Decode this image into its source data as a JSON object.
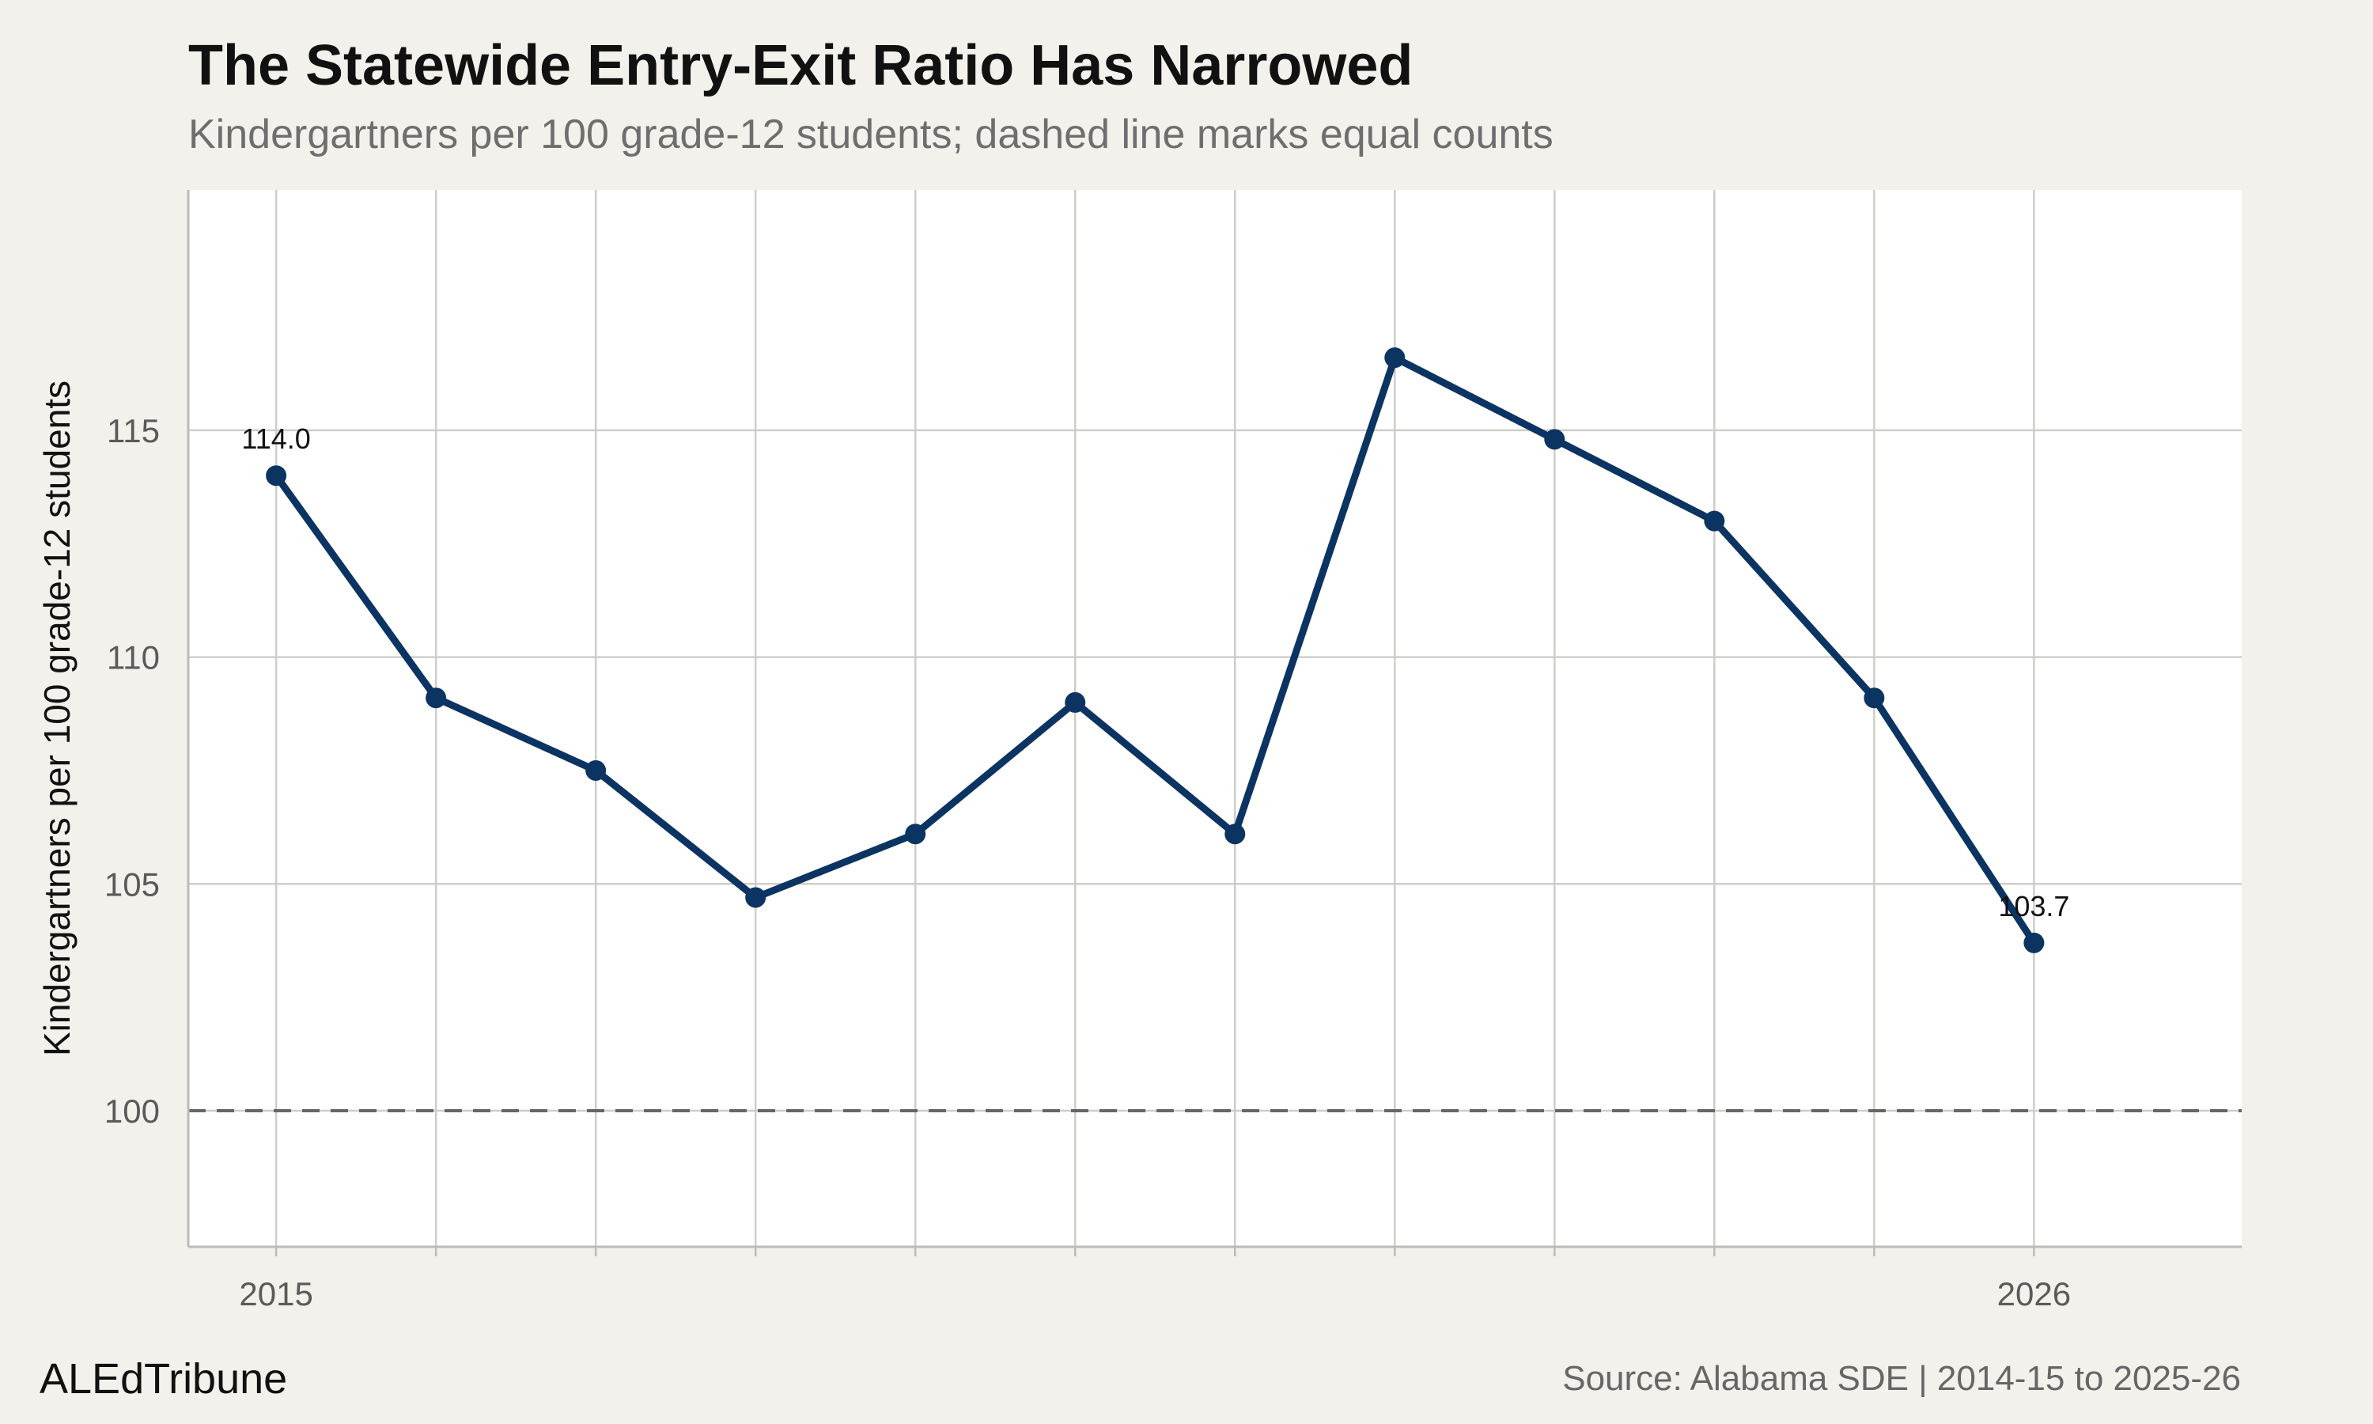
{
  "chart_data": {
    "type": "line",
    "title": "The Statewide Entry-Exit Ratio Has Narrowed",
    "subtitle": "Kindergartners per 100 grade-12 students; dashed line marks equal counts",
    "xlabel": "",
    "ylabel": "Kindergartners per 100 grade-12 students",
    "x": [
      2015,
      2016,
      2017,
      2018,
      2019,
      2020,
      2021,
      2022,
      2023,
      2024,
      2025,
      2026
    ],
    "series": [
      {
        "values": [
          114.0,
          109.1,
          107.5,
          104.7,
          106.1,
          109.0,
          106.1,
          116.6,
          114.8,
          113.0,
          109.1,
          103.7
        ],
        "color": "#0b3463"
      }
    ],
    "x_tick_labels": [
      "2015",
      "2026"
    ],
    "y_ticks": [
      100,
      105,
      110,
      115
    ],
    "xlim": [
      2014.45,
      2027.3
    ],
    "ylim": [
      97,
      120.3
    ],
    "reference_line": {
      "y": 100,
      "style": "dashed",
      "color": "#666666"
    },
    "point_labels": [
      {
        "x": 2015,
        "text": "114.0"
      },
      {
        "x": 2026,
        "text": "103.7"
      }
    ],
    "grid": true,
    "panel_background": "#ffffff",
    "page_background": "#f3f1ec",
    "grid_color": "#cfcdc8"
  },
  "footer": {
    "brand": "ALEdTribune",
    "source": "Source: Alabama SDE | 2014-15 to 2025-26"
  }
}
